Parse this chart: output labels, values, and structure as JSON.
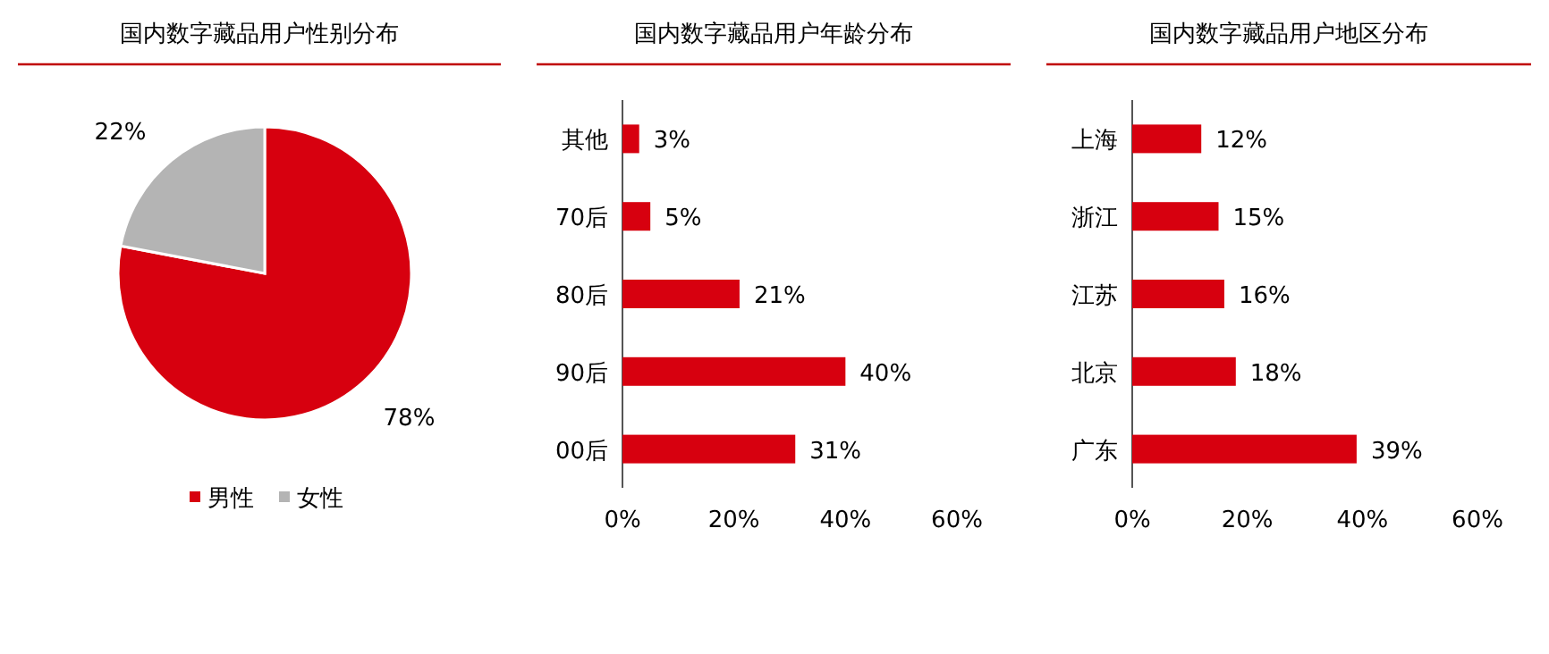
{
  "chart_data": [
    {
      "type": "pie",
      "title": "国内数字藏品用户性别分布",
      "categories": [
        "男性",
        "女性"
      ],
      "values": [
        78,
        22
      ],
      "colors": [
        "#d7000f",
        "#b4b4b4"
      ],
      "value_labels": [
        "78%",
        "22%"
      ],
      "legend": "bottom"
    },
    {
      "type": "bar",
      "orientation": "horizontal",
      "title": "国内数字藏品用户年龄分布",
      "categories": [
        "其他",
        "70后",
        "80后",
        "90后",
        "00后"
      ],
      "values": [
        3,
        5,
        21,
        40,
        31
      ],
      "color": "#d7000f",
      "value_labels": [
        "3%",
        "5%",
        "21%",
        "40%",
        "31%"
      ],
      "xlim": [
        0,
        60
      ],
      "xticks": [
        {
          "value": 0,
          "label": "0%"
        },
        {
          "value": 20,
          "label": "20%"
        },
        {
          "value": 40,
          "label": "40%"
        },
        {
          "value": 60,
          "label": "60%"
        }
      ]
    },
    {
      "type": "bar",
      "orientation": "horizontal",
      "title": "国内数字藏品用户地区分布",
      "categories": [
        "上海",
        "浙江",
        "江苏",
        "北京",
        "广东"
      ],
      "values": [
        12,
        15,
        16,
        18,
        39
      ],
      "color": "#d7000f",
      "value_labels": [
        "12%",
        "15%",
        "16%",
        "18%",
        "39%"
      ],
      "xlim": [
        0,
        60
      ],
      "xticks": [
        {
          "value": 0,
          "label": "0%"
        },
        {
          "value": 20,
          "label": "20%"
        },
        {
          "value": 40,
          "label": "40%"
        },
        {
          "value": 60,
          "label": "60%"
        }
      ]
    }
  ]
}
